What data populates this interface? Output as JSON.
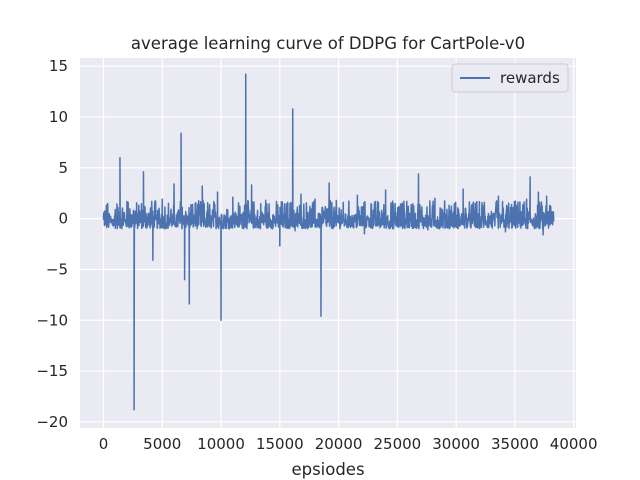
{
  "chart_data": {
    "type": "line",
    "title": "average learning curve of DDPG for CartPole-v0",
    "xlabel": "epsiodes",
    "ylabel": "",
    "xlim": [
      -2000,
      40200
    ],
    "ylim": [
      -20.6,
      15.8
    ],
    "xticks": [
      0,
      5000,
      10000,
      15000,
      20000,
      25000,
      30000,
      35000,
      40000
    ],
    "xtick_labels": [
      "0",
      "5000",
      "10000",
      "15000",
      "20000",
      "25000",
      "30000",
      "35000",
      "40000"
    ],
    "yticks": [
      -20,
      -15,
      -10,
      -5,
      0,
      5,
      10,
      15
    ],
    "ytick_labels": [
      "−20",
      "−15",
      "−10",
      "−5",
      "0",
      "5",
      "10",
      "15"
    ],
    "grid": true,
    "legend_position": "upper right",
    "series": [
      {
        "name": "rewards",
        "color": "#4c72b0",
        "noise_band": {
          "low": -1.0,
          "high": 1.8,
          "x_start": 0,
          "x_end": 38300
        },
        "x": [
          0,
          300,
          600,
          1000,
          1400,
          1700,
          2100,
          2500,
          2600,
          2700,
          3000,
          3400,
          3600,
          4200,
          4600,
          5000,
          5400,
          6000,
          6300,
          6600,
          6700,
          6900,
          7000,
          7300,
          7800,
          8400,
          9000,
          9700,
          10000,
          10500,
          11000,
          11500,
          12000,
          12100,
          12200,
          12600,
          13200,
          13800,
          14400,
          15000,
          15200,
          15600,
          16100,
          16200,
          16300,
          16800,
          17400,
          18000,
          18400,
          18500,
          18600,
          19200,
          19800,
          20400,
          21000,
          21600,
          22200,
          22800,
          23400,
          24000,
          24600,
          25200,
          25800,
          26400,
          26800,
          27000,
          27600,
          28200,
          28800,
          29400,
          30000,
          30600,
          31200,
          31800,
          32400,
          33000,
          33600,
          34200,
          34800,
          35400,
          36000,
          36300,
          36600,
          37000,
          37400,
          37700,
          38000,
          38300
        ],
        "y": [
          0.3,
          1.2,
          -0.4,
          0.9,
          6.0,
          0.5,
          1.6,
          -0.3,
          -18.8,
          0.4,
          1.3,
          4.6,
          0.2,
          -4.1,
          0.8,
          1.9,
          -0.5,
          3.4,
          0.6,
          8.4,
          1.1,
          -6.0,
          0.7,
          -8.4,
          1.5,
          3.2,
          -0.8,
          2.6,
          -10.0,
          0.9,
          2.1,
          -0.6,
          1.3,
          14.2,
          0.4,
          3.3,
          -0.9,
          1.8,
          0.3,
          -2.7,
          1.0,
          0.5,
          10.8,
          0.8,
          -1.2,
          2.4,
          0.6,
          1.9,
          -0.4,
          -9.6,
          1.1,
          3.5,
          -0.7,
          1.6,
          0.2,
          2.3,
          -1.5,
          1.4,
          0.6,
          2.8,
          -1.0,
          0.9,
          1.7,
          -0.3,
          4.4,
          0.8,
          -1.1,
          2.0,
          0.5,
          1.3,
          -0.6,
          2.9,
          0.4,
          -0.9,
          1.6,
          0.7,
          2.2,
          -1.3,
          1.0,
          0.6,
          1.9,
          4.1,
          -0.4,
          2.6,
          -1.6,
          2.2,
          0.3,
          0.2
        ]
      }
    ]
  }
}
